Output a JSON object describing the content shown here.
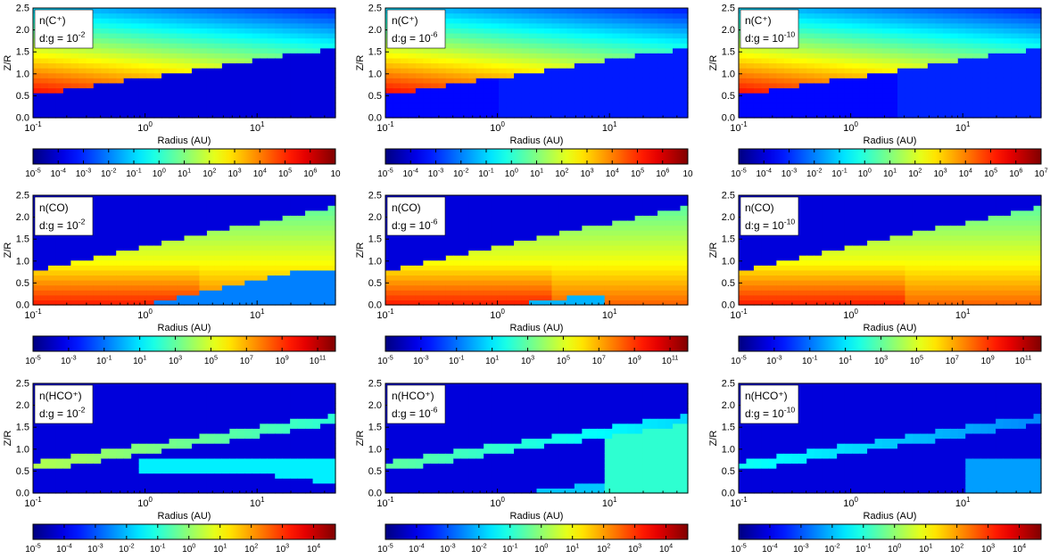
{
  "figure": {
    "rows": [
      {
        "species_label": "n(C⁺)",
        "colorbar_ticks": [
          {
            "base": "10",
            "exp": "-5"
          },
          {
            "base": "10",
            "exp": "-4"
          },
          {
            "base": "10",
            "exp": "-3"
          },
          {
            "base": "10",
            "exp": "-2"
          },
          {
            "base": "10",
            "exp": "-1"
          },
          {
            "base": "10",
            "exp": "0"
          },
          {
            "base": "10",
            "exp": "1"
          },
          {
            "base": "10",
            "exp": "2"
          },
          {
            "base": "10",
            "exp": "3"
          },
          {
            "base": "10",
            "exp": "4"
          },
          {
            "base": "10",
            "exp": "5"
          },
          {
            "base": "10",
            "exp": "6"
          },
          {
            "base": "10",
            "exp": ""
          }
        ],
        "colorbar_ticks_last_panel": [
          {
            "base": "10",
            "exp": "-5"
          },
          {
            "base": "10",
            "exp": "-4"
          },
          {
            "base": "10",
            "exp": "-3"
          },
          {
            "base": "10",
            "exp": "-2"
          },
          {
            "base": "10",
            "exp": "-1"
          },
          {
            "base": "10",
            "exp": "0"
          },
          {
            "base": "10",
            "exp": "1"
          },
          {
            "base": "10",
            "exp": "2"
          },
          {
            "base": "10",
            "exp": "3"
          },
          {
            "base": "10",
            "exp": "4"
          },
          {
            "base": "10",
            "exp": "5"
          },
          {
            "base": "10",
            "exp": "6"
          },
          {
            "base": "10",
            "exp": "7"
          }
        ]
      },
      {
        "species_label": "n(CO)",
        "colorbar_ticks": [
          {
            "base": "10",
            "exp": "-5"
          },
          {
            "base": "10",
            "exp": "-3"
          },
          {
            "base": "10",
            "exp": "-1"
          },
          {
            "base": "10",
            "exp": "1"
          },
          {
            "base": "10",
            "exp": "3"
          },
          {
            "base": "10",
            "exp": "5"
          },
          {
            "base": "10",
            "exp": "7"
          },
          {
            "base": "10",
            "exp": "9"
          },
          {
            "base": "10",
            "exp": "11"
          }
        ]
      },
      {
        "species_label": "n(HCO⁺)",
        "colorbar_ticks": [
          {
            "base": "10",
            "exp": "-5"
          },
          {
            "base": "10",
            "exp": "-4"
          },
          {
            "base": "10",
            "exp": "-3"
          },
          {
            "base": "10",
            "exp": "-2"
          },
          {
            "base": "10",
            "exp": "-1"
          },
          {
            "base": "10",
            "exp": "0"
          },
          {
            "base": "10",
            "exp": "1"
          },
          {
            "base": "10",
            "exp": "2"
          },
          {
            "base": "10",
            "exp": "3"
          },
          {
            "base": "10",
            "exp": "4"
          }
        ]
      }
    ],
    "columns": [
      {
        "dg_text": "d:g = 10",
        "dg_exp": "-2"
      },
      {
        "dg_text": "d:g = 10",
        "dg_exp": "-6"
      },
      {
        "dg_text": "d:g = 10",
        "dg_exp": "-10"
      }
    ],
    "colormap": "jet"
  },
  "chart_data": {
    "type": "heatmap",
    "layout": "3x3 grid: rows = species (C+, CO, HCO+), columns = dust-to-gas ratio (1e-2, 1e-6, 1e-10)",
    "xlabel": "Radius (AU)",
    "ylabel": "Z/R",
    "xscale": "log",
    "xlim": [
      0.1,
      50
    ],
    "ylim": [
      0.0,
      2.5
    ],
    "x_ticks": [
      {
        "base": "10",
        "exp": "-1"
      },
      {
        "base": "10",
        "exp": "0"
      },
      {
        "base": "10",
        "exp": "1"
      }
    ],
    "y_ticks": [
      "0.0",
      "0.5",
      "1.0",
      "1.5",
      "2.0",
      "2.5"
    ],
    "colorbar_ranges_log10": [
      [
        -5,
        7
      ],
      [
        -5,
        12
      ],
      [
        -5,
        4.7
      ]
    ]
  }
}
